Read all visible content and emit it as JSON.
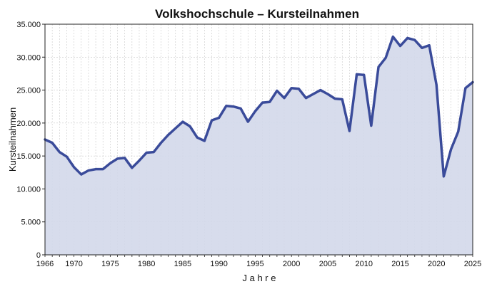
{
  "chart_data": {
    "type": "area",
    "title": "Volkshochschule – Kursteilnahmen",
    "xlabel": "J a h r e",
    "ylabel": "Kursteilnahmen",
    "xlim": [
      1966,
      2025
    ],
    "ylim": [
      0,
      35000
    ],
    "x_ticks": [
      1966,
      1970,
      1975,
      1980,
      1985,
      1990,
      1995,
      2000,
      2005,
      2010,
      2015,
      2020,
      2025
    ],
    "y_ticks": [
      0,
      5000,
      10000,
      15000,
      20000,
      25000,
      30000,
      35000
    ],
    "y_tick_labels": [
      "0",
      "5.000",
      "10.000",
      "15.000",
      "20.000",
      "25.000",
      "30.000",
      "35.000"
    ],
    "grid": true,
    "line_color": "#3a4b9a",
    "fill_color": "#d3d8ea",
    "x": [
      1966,
      1967,
      1968,
      1969,
      1970,
      1971,
      1972,
      1973,
      1974,
      1975,
      1976,
      1977,
      1978,
      1979,
      1980,
      1981,
      1982,
      1983,
      1984,
      1985,
      1986,
      1987,
      1988,
      1989,
      1990,
      1991,
      1992,
      1993,
      1994,
      1995,
      1996,
      1997,
      1998,
      1999,
      2000,
      2001,
      2002,
      2003,
      2004,
      2005,
      2006,
      2007,
      2008,
      2009,
      2010,
      2011,
      2012,
      2013,
      2014,
      2015,
      2016,
      2017,
      2018,
      2019,
      2020,
      2021,
      2022,
      2023,
      2024,
      2025
    ],
    "values": [
      17500,
      17000,
      15600,
      14900,
      13300,
      12200,
      12800,
      13000,
      13000,
      13900,
      14600,
      14700,
      13200,
      14300,
      15500,
      15600,
      17000,
      18200,
      19200,
      20200,
      19500,
      17800,
      17300,
      20400,
      20800,
      22600,
      22500,
      22200,
      20200,
      21800,
      23100,
      23200,
      24900,
      23800,
      25300,
      25200,
      23800,
      24400,
      25000,
      24400,
      23700,
      23600,
      18800,
      27400,
      27300,
      19600,
      28500,
      29900,
      33100,
      31700,
      32900,
      32600,
      31400,
      31800,
      25800,
      11900,
      16000,
      18700,
      25300,
      26200
    ]
  }
}
